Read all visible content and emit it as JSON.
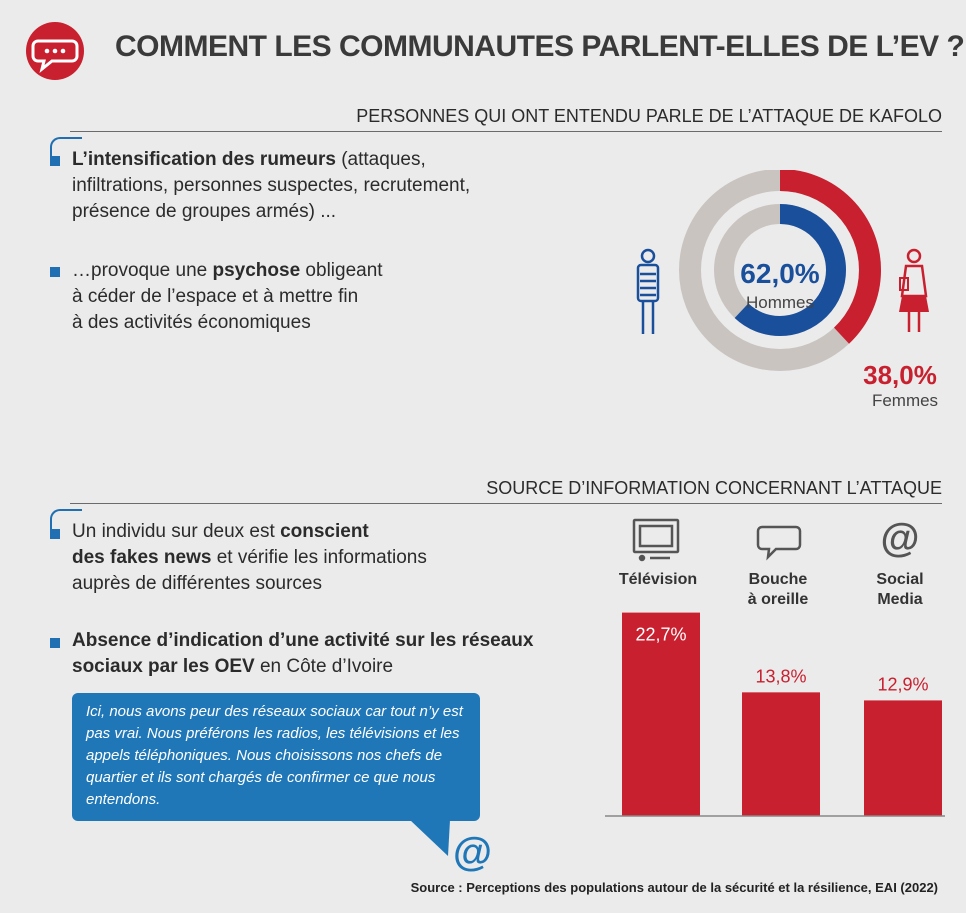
{
  "header": {
    "title": "COMMENT LES COMMUNAUTES PARLENT-ELLES DE L’EV ?"
  },
  "section1": {
    "heading": "PERSONNES QUI ONT ENTENDU PARLE DE L’ATTAQUE DE KAFOLO",
    "bullets": [
      {
        "bold": "L’intensification des rumeurs",
        "rest1": " (attaques,",
        "line2": "infiltrations, personnes suspectes, recrutement,",
        "line3": "présence de groupes armés) ..."
      },
      {
        "pre": "…provoque une ",
        "bold": "psychose",
        "rest1": " obligeant",
        "line2": "à céder de l’espace et à mettre fin",
        "line3": "à des activités économiques"
      }
    ]
  },
  "section2": {
    "heading": "SOURCE D’INFORMATION CONCERNANT L’ATTAQUE",
    "bullets": [
      {
        "pre": "Un individu sur deux est ",
        "bold1": "conscient",
        "bold2": "des fakes news",
        "rest2": " et vérifie les informations",
        "line3": "auprès de différentes sources"
      },
      {
        "bold1": "Absence d’indication d’une activité sur les réseaux",
        "bold2": "sociaux par les OEV",
        "rest2": " en Côte d’Ivoire"
      }
    ],
    "quote": "Ici, nous avons peur des réseaux sociaux car tout n’y est pas vrai. Nous préférons les radios, les télévisions et les appels téléphoniques. Nous choisissons nos chefs de quartier et ils sont chargés de confirmer ce que nous entendons."
  },
  "source_note": "Source : Perceptions des populations autour de la sécurité et la résilience, EAI (2022)",
  "icons": {
    "logo": "speech-bubble-icon",
    "male": "man-icon",
    "female": "woman-icon",
    "tv": "television-icon",
    "word_of_mouth": "speech-bubble-icon",
    "social": "at-icon"
  },
  "colors": {
    "blue": "#1a4f9c",
    "red": "#c8202f",
    "grey": "#c9c4c0",
    "light_blue": "#1f77b8"
  },
  "chart_data": [
    {
      "type": "pie",
      "labels": [
        "Hommes",
        "Femmes"
      ],
      "values": [
        62.0,
        38.0
      ],
      "value_labels": [
        "62,0%",
        "38,0%"
      ]
    },
    {
      "type": "bar",
      "categories": [
        "Télévision",
        "Bouche à oreille",
        "Social Media"
      ],
      "category_lines": [
        [
          "Télévision"
        ],
        [
          "Bouche",
          "à oreille"
        ],
        [
          "Social",
          "Media"
        ]
      ],
      "values": [
        22.7,
        13.8,
        12.9
      ],
      "value_labels": [
        "22,7%",
        "13,8%",
        "12,9%"
      ],
      "ylim": [
        0,
        25
      ]
    }
  ]
}
